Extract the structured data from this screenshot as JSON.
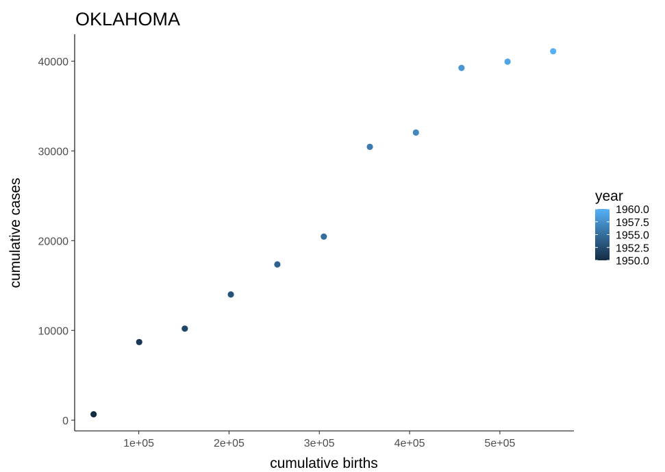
{
  "chart_data": {
    "type": "scatter",
    "title": "OKLAHOMA",
    "xlabel": "cumulative births",
    "ylabel": "cumulative cases",
    "xlim": [
      29000,
      582000
    ],
    "ylim": [
      -1200,
      43000
    ],
    "x_ticks": [
      100000,
      200000,
      300000,
      400000,
      500000
    ],
    "x_tick_labels": [
      "1e+05",
      "2e+05",
      "3e+05",
      "4e+05",
      "5e+05"
    ],
    "y_ticks": [
      0,
      10000,
      20000,
      30000,
      40000
    ],
    "y_tick_labels": [
      "0",
      "10000",
      "20000",
      "30000",
      "40000"
    ],
    "grid": false,
    "points": [
      {
        "x": 50000,
        "y": 650,
        "year": 1950
      },
      {
        "x": 100500,
        "y": 8700,
        "year": 1951
      },
      {
        "x": 151000,
        "y": 10200,
        "year": 1952
      },
      {
        "x": 202000,
        "y": 14000,
        "year": 1953
      },
      {
        "x": 253500,
        "y": 17350,
        "year": 1954
      },
      {
        "x": 305000,
        "y": 20450,
        "year": 1955
      },
      {
        "x": 356000,
        "y": 30450,
        "year": 1956
      },
      {
        "x": 407000,
        "y": 32050,
        "year": 1957
      },
      {
        "x": 457500,
        "y": 39250,
        "year": 1958
      },
      {
        "x": 508500,
        "y": 39950,
        "year": 1959
      },
      {
        "x": 559000,
        "y": 41100,
        "year": 1960
      }
    ],
    "legend": {
      "title": "year",
      "position": "right",
      "range": [
        1950,
        1960
      ],
      "ticks": [
        1960,
        1957.5,
        1955,
        1952.5,
        1950
      ],
      "tick_labels": [
        "1960.0",
        "1957.5",
        "1955.0",
        "1952.5",
        "1950.0"
      ],
      "color_low": "#132B43",
      "color_high": "#56B1F7"
    }
  }
}
